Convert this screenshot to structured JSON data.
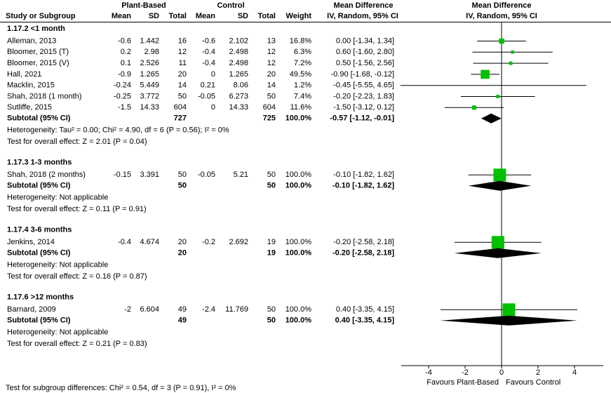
{
  "chart_data": {
    "type": "forest",
    "headers": {
      "group_left": "Plant-Based",
      "group_right": "Control",
      "md_table": "Mean Difference",
      "md_plot": "Mean Difference",
      "study": "Study or Subgroup",
      "mean_left": "Mean",
      "sd_left": "SD",
      "total_left": "Total",
      "mean_right": "Mean",
      "sd_right": "SD",
      "total_right": "Total",
      "weight": "Weight",
      "method_table": "IV, Random, 95% CI",
      "method_plot": "IV, Random, 95% CI"
    },
    "groups": [
      {
        "title": "1.17.2 <1 month",
        "studies": [
          {
            "name": "Alleman, 2013",
            "pb": [
              -0.6,
              1.442,
              16
            ],
            "c": [
              -0.6,
              2.102,
              13
            ],
            "weight": 16.8,
            "weight_label": "16.8%",
            "md": 0,
            "ci": [
              -1.34,
              1.34
            ],
            "value_label": "0.00 [-1.34, 1.34]"
          },
          {
            "name": "Bloomer, 2015 (T)",
            "pb": [
              0.2,
              2.98,
              12
            ],
            "c": [
              -0.4,
              2.498,
              12
            ],
            "weight": 6.3,
            "weight_label": "6.3%",
            "md": 0.6,
            "ci": [
              -1.6,
              2.8
            ],
            "value_label": "0.60 [-1.60, 2.80]"
          },
          {
            "name": "Bloomer, 2015 (V)",
            "pb": [
              0.1,
              2.526,
              11
            ],
            "c": [
              -0.4,
              2.498,
              12
            ],
            "weight": 7.2,
            "weight_label": "7.2%",
            "md": 0.5,
            "ci": [
              -1.56,
              2.56
            ],
            "value_label": "0.50 [-1.56, 2.56]"
          },
          {
            "name": "Hall, 2021",
            "pb": [
              -0.9,
              1.265,
              20
            ],
            "c": [
              0,
              1.265,
              20
            ],
            "weight": 49.5,
            "weight_label": "49.5%",
            "md": -0.9,
            "ci": [
              -1.68,
              -0.12
            ],
            "value_label": "-0.90 [-1.68, -0.12]"
          },
          {
            "name": "Macklin, 2015",
            "pb": [
              -0.24,
              5.449,
              14
            ],
            "c": [
              0.21,
              8.06,
              14
            ],
            "weight": 1.2,
            "weight_label": "1.2%",
            "md": -0.45,
            "ci": [
              -5.55,
              4.65
            ],
            "value_label": "-0.45 [-5.55, 4.65]"
          },
          {
            "name": "Shah, 2018 (1 month)",
            "pb": [
              -0.25,
              3.772,
              50
            ],
            "c": [
              -0.05,
              6.273,
              50
            ],
            "weight": 7.4,
            "weight_label": "7.4%",
            "md": -0.2,
            "ci": [
              -2.23,
              1.83
            ],
            "value_label": "-0.20 [-2.23, 1.83]"
          },
          {
            "name": "Sutliffe, 2015",
            "pb": [
              -1.5,
              14.33,
              604
            ],
            "c": [
              0,
              14.33,
              604
            ],
            "weight": 11.6,
            "weight_label": "11.6%",
            "md": -1.5,
            "ci": [
              -3.12,
              0.12
            ],
            "value_label": "-1.50 [-3.12, 0.12]"
          }
        ],
        "subtotal": {
          "label": "Subtotal (95% CI)",
          "pb_total": 727,
          "c_total": 725,
          "weight_label": "100.0%",
          "md": -0.57,
          "ci": [
            -1.12,
            -0.01
          ],
          "value_label": "-0.57 [-1.12, -0.01]"
        },
        "heterogeneity": "Heterogeneity: Tau² = 0.00; Chi² = 4.90, df = 6 (P = 0.56); I² = 0%",
        "overall": "Test for overall effect: Z = 2.01 (P = 0.04)"
      },
      {
        "title": "1.17.3 1-3 months",
        "studies": [
          {
            "name": "Shah, 2018 (2 months)",
            "pb": [
              -0.15,
              3.391,
              50
            ],
            "c": [
              -0.05,
              5.21,
              50
            ],
            "weight": 100,
            "weight_label": "100.0%",
            "md": -0.1,
            "ci": [
              -1.82,
              1.62
            ],
            "value_label": "-0.10 [-1.82, 1.62]"
          }
        ],
        "subtotal": {
          "label": "Subtotal (95% CI)",
          "pb_total": 50,
          "c_total": 50,
          "weight_label": "100.0%",
          "md": -0.1,
          "ci": [
            -1.82,
            1.62
          ],
          "value_label": "-0.10 [-1.82, 1.62]"
        },
        "heterogeneity": "Heterogeneity: Not applicable",
        "overall": "Test for overall effect: Z = 0.11 (P = 0.91)"
      },
      {
        "title": "1.17.4 3-6 months",
        "studies": [
          {
            "name": "Jenkins, 2014",
            "pb": [
              -0.4,
              4.674,
              20
            ],
            "c": [
              -0.2,
              2.692,
              19
            ],
            "weight": 100,
            "weight_label": "100.0%",
            "md": -0.2,
            "ci": [
              -2.58,
              2.18
            ],
            "value_label": "-0.20 [-2.58, 2.18]"
          }
        ],
        "subtotal": {
          "label": "Subtotal (95% CI)",
          "pb_total": 20,
          "c_total": 19,
          "weight_label": "100.0%",
          "md": -0.2,
          "ci": [
            -2.58,
            2.18
          ],
          "value_label": "-0.20 [-2.58, 2.18]"
        },
        "heterogeneity": "Heterogeneity: Not applicable",
        "overall": "Test for overall effect: Z = 0.16 (P = 0.87)"
      },
      {
        "title": "1.17.6 >12 months",
        "studies": [
          {
            "name": "Barnard, 2009",
            "pb": [
              -2,
              6.604,
              49
            ],
            "c": [
              -2.4,
              11.769,
              50
            ],
            "weight": 100,
            "weight_label": "100.0%",
            "md": 0.4,
            "ci": [
              -3.35,
              4.15
            ],
            "value_label": "0.40 [-3.35, 4.15]"
          }
        ],
        "subtotal": {
          "label": "Subtotal (95% CI)",
          "pb_total": 49,
          "c_total": 50,
          "weight_label": "100.0%",
          "md": 0.4,
          "ci": [
            -3.35,
            4.15
          ],
          "value_label": "0.40 [-3.35, 4.15]"
        },
        "heterogeneity": "Heterogeneity: Not applicable",
        "overall": "Test for overall effect: Z = 0.21 (P = 0.83)"
      }
    ],
    "xlim": [
      -5.5,
      5.5
    ],
    "xticks": [
      -4,
      -2,
      0,
      2,
      4
    ],
    "favours_left": "Favours Plant-Based",
    "favours_right": "Favours Control",
    "footer": "Test for subgroup differences: Chi² = 0.54, df = 3 (P = 0.91), I² = 0%",
    "marker_color": "#00c000",
    "diamond_color": "#000000"
  }
}
